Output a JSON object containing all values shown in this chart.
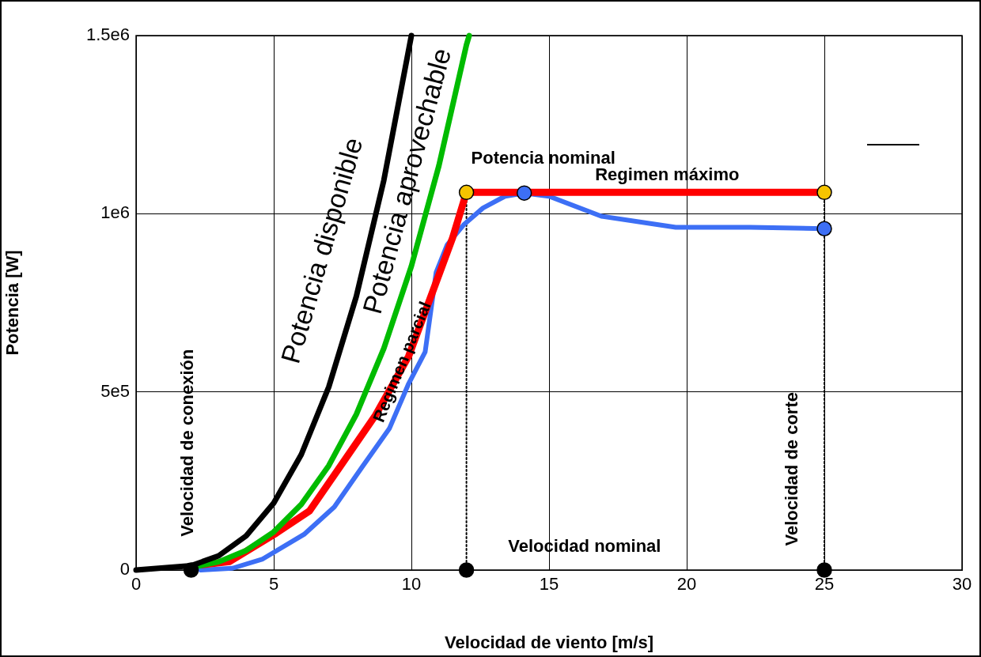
{
  "chart_data": {
    "type": "line",
    "xlabel": "Velocidad de viento [m/s]",
    "ylabel": "Potencia [W]",
    "xlim": [
      0,
      30
    ],
    "xticks": [
      0,
      5,
      10,
      15,
      20,
      25,
      30
    ],
    "ylim": [
      0,
      1500000
    ],
    "yticks": [
      0,
      {
        "value": 500000,
        "label": "5e5"
      },
      {
        "value": 1000000,
        "label": "1e6"
      },
      {
        "value": 1500000,
        "label": "1.5e6"
      }
    ],
    "grid": true,
    "marker": "none",
    "line_style": "solid",
    "series": [
      {
        "color": "#000000",
        "x": [
          0,
          2,
          3,
          4,
          5,
          6,
          7,
          8,
          9,
          10
        ],
        "values": [
          0,
          12000,
          40000,
          96000,
          188000,
          324000,
          514000,
          768000,
          1094000,
          1500000
        ]
      },
      {
        "color": "#00bb00",
        "x": [
          2,
          3,
          4,
          5,
          6,
          7,
          8,
          9,
          10,
          11,
          12,
          12.1
        ],
        "values": [
          7000,
          23000,
          55000,
          107000,
          184000,
          293000,
          437000,
          622000,
          853000,
          1135000,
          1474000,
          1500000
        ]
      },
      {
        "color": "#ff0000",
        "x": [
          2.4,
          3.4,
          5.1,
          6.3,
          7.5,
          8.7,
          9.9,
          10.8,
          11.5,
          12,
          25
        ],
        "values": [
          15000,
          24000,
          104000,
          166000,
          300000,
          435000,
          600000,
          787000,
          933000,
          1060000,
          1060000
        ]
      },
      {
        "color": "#3d6ff5",
        "x": [
          2.35,
          3.5,
          4.6,
          6.1,
          7.2,
          8.2,
          9.2,
          9.9,
          10.5,
          10.9,
          11.3,
          11.9,
          12.6,
          13.4,
          14.1,
          15,
          16.9,
          19.6,
          22.3,
          25
        ],
        "values": [
          0,
          5000,
          31000,
          100000,
          177000,
          288000,
          397000,
          523000,
          612000,
          836000,
          913000,
          969000,
          1016000,
          1049000,
          1058000,
          1049000,
          993000,
          962000,
          962000,
          958000
        ]
      },
      {
        "type": "line",
        "color": "#000000",
        "line_style": "dotted",
        "x": [
          12,
          12
        ],
        "values": [
          0,
          1060000
        ]
      },
      {
        "type": "line",
        "color": "#000000",
        "line_style": "dotted",
        "x": [
          25,
          25
        ],
        "values": [
          0,
          1060000
        ]
      },
      {
        "type": "scatter",
        "marker": "circle",
        "color": "#000000",
        "x": [
          2,
          12,
          25
        ],
        "values": [
          0,
          0,
          0
        ]
      },
      {
        "type": "scatter",
        "marker": "circle",
        "color": "#f5c400",
        "x": [
          12,
          25
        ],
        "values": [
          1060000,
          1060000
        ]
      },
      {
        "type": "scatter",
        "marker": "circle",
        "color": "#3d6ff5",
        "x": [
          14.1,
          25
        ],
        "values": [
          1058000,
          958000
        ]
      }
    ],
    "annotations": [
      "Velocidad de conexión",
      "Potencia disponible",
      "Potencia aprovechable",
      "Regimen parcial",
      "Potencia nominal",
      "Regimen máximo",
      "Velocidad nominal",
      "Velocidad de corte"
    ]
  }
}
